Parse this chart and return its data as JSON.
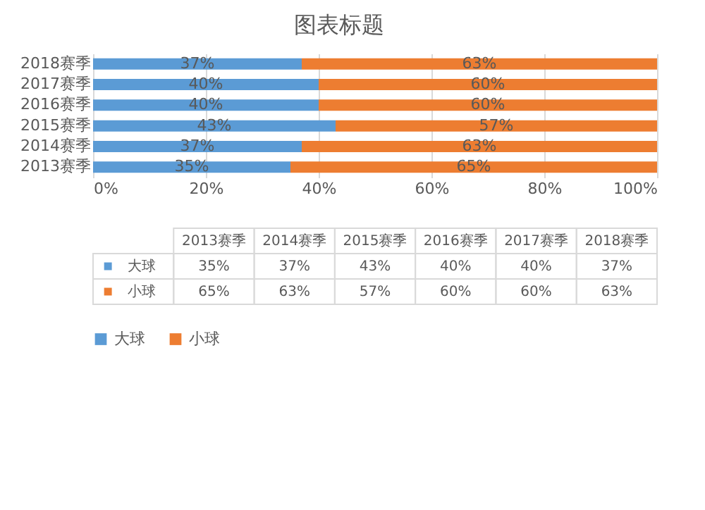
{
  "chart_data": {
    "type": "bar",
    "title": "图表标题",
    "orientation": "horizontal",
    "stacked": true,
    "categories": [
      "2018赛季",
      "2017赛季",
      "2016赛季",
      "2015赛季",
      "2014赛季",
      "2013赛季"
    ],
    "series": [
      {
        "name": "大球",
        "color": "#5b9bd5",
        "values": [
          37,
          40,
          40,
          43,
          37,
          35
        ],
        "value_labels": [
          "37%",
          "40%",
          "40%",
          "43%",
          "37%",
          "35%"
        ]
      },
      {
        "name": "小球",
        "color": "#ed7d31",
        "values": [
          63,
          60,
          60,
          57,
          63,
          65
        ],
        "value_labels": [
          "63%",
          "60%",
          "60%",
          "57%",
          "63%",
          "65%"
        ]
      }
    ],
    "xlim": [
      0,
      100
    ],
    "xticks": [
      {
        "value": 0,
        "label": "0%"
      },
      {
        "value": 20,
        "label": "20%"
      },
      {
        "value": 40,
        "label": "40%"
      },
      {
        "value": 60,
        "label": "60%"
      },
      {
        "value": 80,
        "label": "80%"
      },
      {
        "value": 100,
        "label": "100%"
      }
    ],
    "grid": "x",
    "legend": "bottom"
  }
}
